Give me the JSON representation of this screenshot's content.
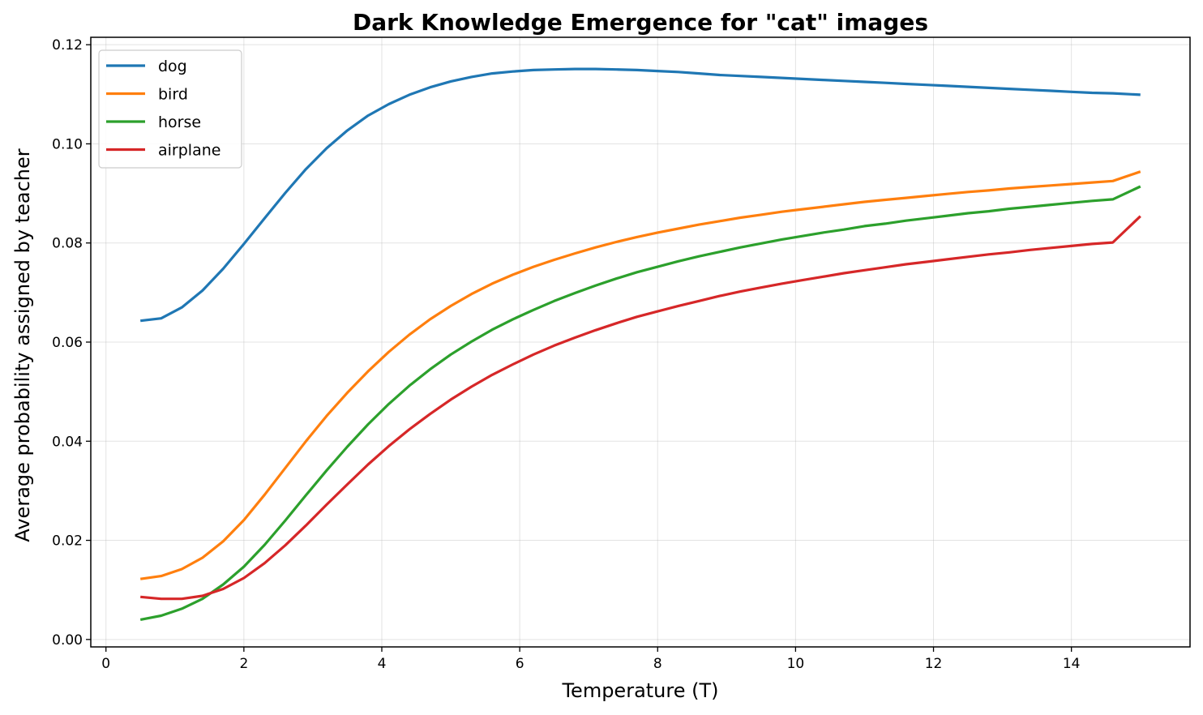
{
  "chart_data": {
    "type": "line",
    "title": "Dark Knowledge Emergence for \"cat\" images",
    "xlabel": "Temperature (T)",
    "ylabel": "Average probability assigned by teacher",
    "xlim": [
      -0.22,
      15.72
    ],
    "ylim": [
      -0.0015,
      0.1215
    ],
    "xticks": [
      0,
      2,
      4,
      6,
      8,
      10,
      12,
      14
    ],
    "xtick_labels": [
      "0",
      "2",
      "4",
      "6",
      "8",
      "10",
      "12",
      "14"
    ],
    "yticks": [
      0.0,
      0.02,
      0.04,
      0.06,
      0.08,
      0.1,
      0.12
    ],
    "ytick_labels": [
      "0.00",
      "0.02",
      "0.04",
      "0.06",
      "0.08",
      "0.10",
      "0.12"
    ],
    "grid": true,
    "legend_position": "upper-left",
    "x": [
      0.5,
      0.8,
      1.1,
      1.4,
      1.7,
      2.0,
      2.3,
      2.6,
      2.9,
      3.2,
      3.5,
      3.8,
      4.1,
      4.4,
      4.7,
      5.0,
      5.3,
      5.6,
      5.9,
      6.2,
      6.5,
      6.8,
      7.1,
      7.4,
      7.7,
      8.0,
      8.3,
      8.6,
      8.9,
      9.2,
      9.5,
      9.8,
      10.1,
      10.4,
      10.7,
      11.0,
      11.3,
      11.6,
      11.9,
      12.2,
      12.5,
      12.8,
      13.1,
      13.4,
      13.7,
      14.0,
      14.3,
      14.6,
      15.0
    ],
    "series": [
      {
        "name": "dog",
        "color": "#1f77b4",
        "values": [
          0.0643,
          0.0648,
          0.067,
          0.0704,
          0.0748,
          0.0798,
          0.085,
          0.0901,
          0.0949,
          0.0991,
          0.1027,
          0.1057,
          0.108,
          0.1099,
          0.1114,
          0.1126,
          0.1135,
          0.1142,
          0.1146,
          0.1149,
          0.115,
          0.1151,
          0.1151,
          0.115,
          0.1149,
          0.1147,
          0.1145,
          0.1142,
          0.1139,
          0.1137,
          0.1135,
          0.1133,
          0.1131,
          0.1129,
          0.1127,
          0.1125,
          0.1123,
          0.1121,
          0.1119,
          0.1117,
          0.1115,
          0.1113,
          0.1111,
          0.1109,
          0.1107,
          0.1105,
          0.1103,
          0.1102,
          0.1099
        ]
      },
      {
        "name": "bird",
        "color": "#ff7f0e",
        "values": [
          0.0122,
          0.0128,
          0.0142,
          0.0165,
          0.0198,
          0.0241,
          0.0292,
          0.0346,
          0.04,
          0.0451,
          0.0498,
          0.0541,
          0.058,
          0.0615,
          0.0646,
          0.0673,
          0.0697,
          0.0718,
          0.0736,
          0.0752,
          0.0766,
          0.0779,
          0.0791,
          0.0802,
          0.0812,
          0.0821,
          0.0829,
          0.0837,
          0.0844,
          0.0851,
          0.0857,
          0.0863,
          0.0868,
          0.0873,
          0.0878,
          0.0883,
          0.0887,
          0.0891,
          0.0895,
          0.0899,
          0.0903,
          0.0906,
          0.091,
          0.0913,
          0.0916,
          0.0919,
          0.0922,
          0.0925,
          0.0944
        ]
      },
      {
        "name": "horse",
        "color": "#2ca02c",
        "values": [
          0.004,
          0.0048,
          0.0062,
          0.0082,
          0.0111,
          0.0147,
          0.0191,
          0.024,
          0.0291,
          0.0341,
          0.0389,
          0.0434,
          0.0475,
          0.0512,
          0.0545,
          0.0575,
          0.0601,
          0.0625,
          0.0646,
          0.0665,
          0.0683,
          0.0699,
          0.0714,
          0.0728,
          0.0741,
          0.0752,
          0.0763,
          0.0773,
          0.0782,
          0.0791,
          0.0799,
          0.0807,
          0.0814,
          0.0821,
          0.0827,
          0.0834,
          0.0839,
          0.0845,
          0.085,
          0.0855,
          0.086,
          0.0864,
          0.0869,
          0.0873,
          0.0877,
          0.0881,
          0.0885,
          0.0888,
          0.0914
        ]
      },
      {
        "name": "airplane",
        "color": "#d62728",
        "values": [
          0.0086,
          0.0082,
          0.0082,
          0.0088,
          0.0102,
          0.0124,
          0.0154,
          0.019,
          0.023,
          0.0272,
          0.0313,
          0.0353,
          0.039,
          0.0424,
          0.0455,
          0.0484,
          0.051,
          0.0534,
          0.0555,
          0.0575,
          0.0593,
          0.0609,
          0.0624,
          0.0638,
          0.0651,
          0.0662,
          0.0673,
          0.0683,
          0.0693,
          0.0702,
          0.071,
          0.0718,
          0.0725,
          0.0732,
          0.0739,
          0.0745,
          0.0751,
          0.0757,
          0.0762,
          0.0767,
          0.0772,
          0.0777,
          0.0781,
          0.0786,
          0.079,
          0.0794,
          0.0798,
          0.0801,
          0.0854
        ]
      }
    ]
  }
}
